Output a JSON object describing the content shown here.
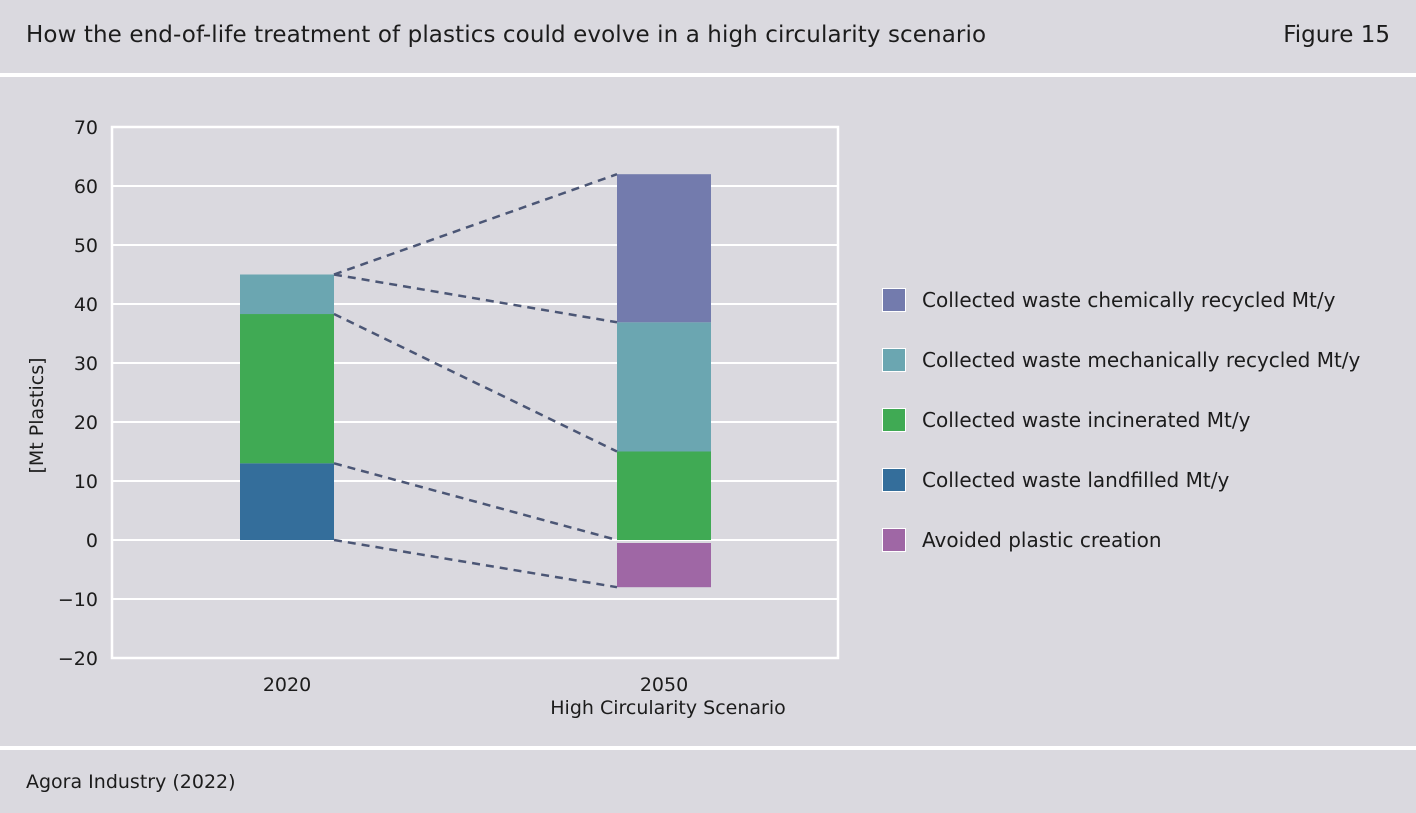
{
  "header": {
    "title": "How the end-of-life treatment of plastics could evolve in a high circularity scenario",
    "figure_label": "Figure 15"
  },
  "footer": {
    "source": "Agora Industry (2022)"
  },
  "chart_data": {
    "type": "bar",
    "stacked": true,
    "ylabel": "[Mt Plastics]",
    "xlabel": "",
    "ylim": [
      -20,
      70
    ],
    "yticks": [
      70,
      60,
      50,
      40,
      30,
      20,
      10,
      0,
      -10,
      -20
    ],
    "ytick_labels": [
      "70",
      "60",
      "50",
      "40",
      "30",
      "20",
      "10",
      "0",
      "−10",
      "−20"
    ],
    "grid": true,
    "legend_position": "right",
    "categories": [
      "2020",
      "2050"
    ],
    "category_sublabels": [
      "",
      "High Circularity Scenario"
    ],
    "series": [
      {
        "name": "Collected waste landfilled Mt/y",
        "color": "#346e9b",
        "values": [
          13,
          0
        ]
      },
      {
        "name": "Collected waste incinerated Mt/y",
        "color": "#40aa54",
        "values": [
          25.3,
          15
        ]
      },
      {
        "name": "Collected waste mechanically recycled Mt/y",
        "color": "#6ba6b1",
        "values": [
          6.7,
          21.9
        ]
      },
      {
        "name": "Collected waste chemically recycled Mt/y",
        "color": "#737bad",
        "values": [
          0,
          25.1
        ]
      },
      {
        "name": "Avoided plastic creation",
        "color": "#9f67a5",
        "values": [
          0,
          -8
        ]
      }
    ],
    "legend_order": [
      3,
      2,
      1,
      0,
      4
    ],
    "connector_style": "dashed",
    "connector_color": "#4b5675"
  }
}
